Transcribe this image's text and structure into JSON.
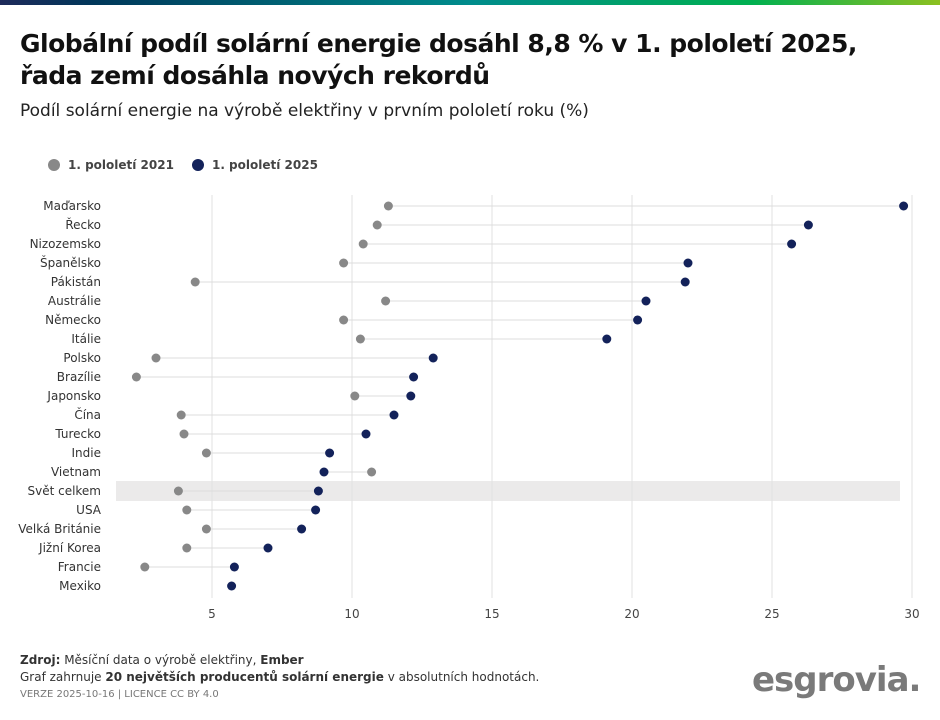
{
  "title": "Globální podíl solární energie dosáhl 8,8 % v 1. pololetí 2025, řada zemí dosáhla nových rekordů",
  "subtitle": "Podíl solární energie na výrobě elektřiny v prvním pololetí roku (%)",
  "chart_data": {
    "type": "dot-plot",
    "xlim": [
      1.5,
      30.5
    ],
    "xticks": [
      5,
      10,
      15,
      20,
      25,
      30
    ],
    "grid": true,
    "legend_placement": "top-left",
    "series": [
      {
        "name": "1. pololetí 2021",
        "color": "#888888"
      },
      {
        "name": "1. pololetí 2025",
        "color": "#13225a"
      }
    ],
    "highlight": "Svět celkem",
    "highlight_color": "#ebeaea",
    "categories": [
      "Maďarsko",
      "Řecko",
      "Nizozemsko",
      "Španělsko",
      "Pákistán",
      "Austrálie",
      "Německo",
      "Itálie",
      "Polsko",
      "Brazílie",
      "Japonsko",
      "Čína",
      "Turecko",
      "Indie",
      "Vietnam",
      "Svět celkem",
      "USA",
      "Velká Británie",
      "Jižní Korea",
      "Francie",
      "Mexiko"
    ],
    "values_2021": [
      11.3,
      10.9,
      10.4,
      9.7,
      4.4,
      11.2,
      9.7,
      10.3,
      3.0,
      2.3,
      10.1,
      3.9,
      4.0,
      4.8,
      10.7,
      3.8,
      4.1,
      4.8,
      4.1,
      2.6,
      null
    ],
    "values_2025": [
      29.7,
      26.3,
      25.7,
      22.0,
      21.9,
      20.5,
      20.2,
      19.1,
      12.9,
      12.2,
      12.1,
      11.5,
      10.5,
      9.2,
      9.0,
      8.8,
      8.7,
      8.2,
      7.0,
      5.8,
      5.7
    ]
  },
  "footer": {
    "source_label": "Zdroj:",
    "source_text": " Měsíční data o výrobě elektřiny, ",
    "source_org": "Ember",
    "note_pre": "Graf zahrnuje ",
    "note_bold": "20 největších producentů solární energie",
    "note_post": " v absolutních hodnotách.",
    "version": "VERZE 2025-10-16 | LICENCE CC BY 4.0"
  },
  "logo": "esgrovia."
}
